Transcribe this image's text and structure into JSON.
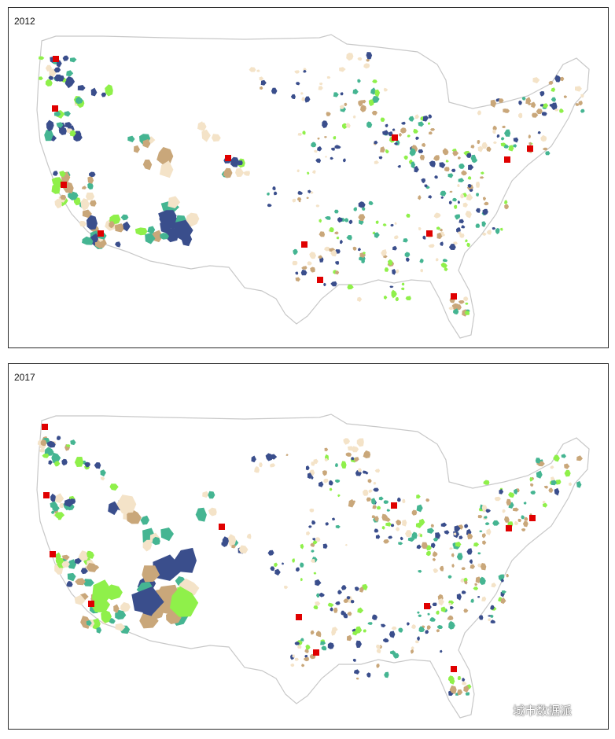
{
  "panels": [
    {
      "id": "2012",
      "label": "2012"
    },
    {
      "id": "2017",
      "label": "2017"
    }
  ],
  "palette": {
    "navy": "#3a4e8c",
    "teal": "#45b592",
    "lime": "#8ff04a",
    "tan": "#c9a77a",
    "beige": "#f4e3c8",
    "city": "#e00000",
    "outline": "#c8c8c8"
  },
  "watermark": {
    "text": "城市数据派",
    "icon": "wechat-icon"
  }
}
